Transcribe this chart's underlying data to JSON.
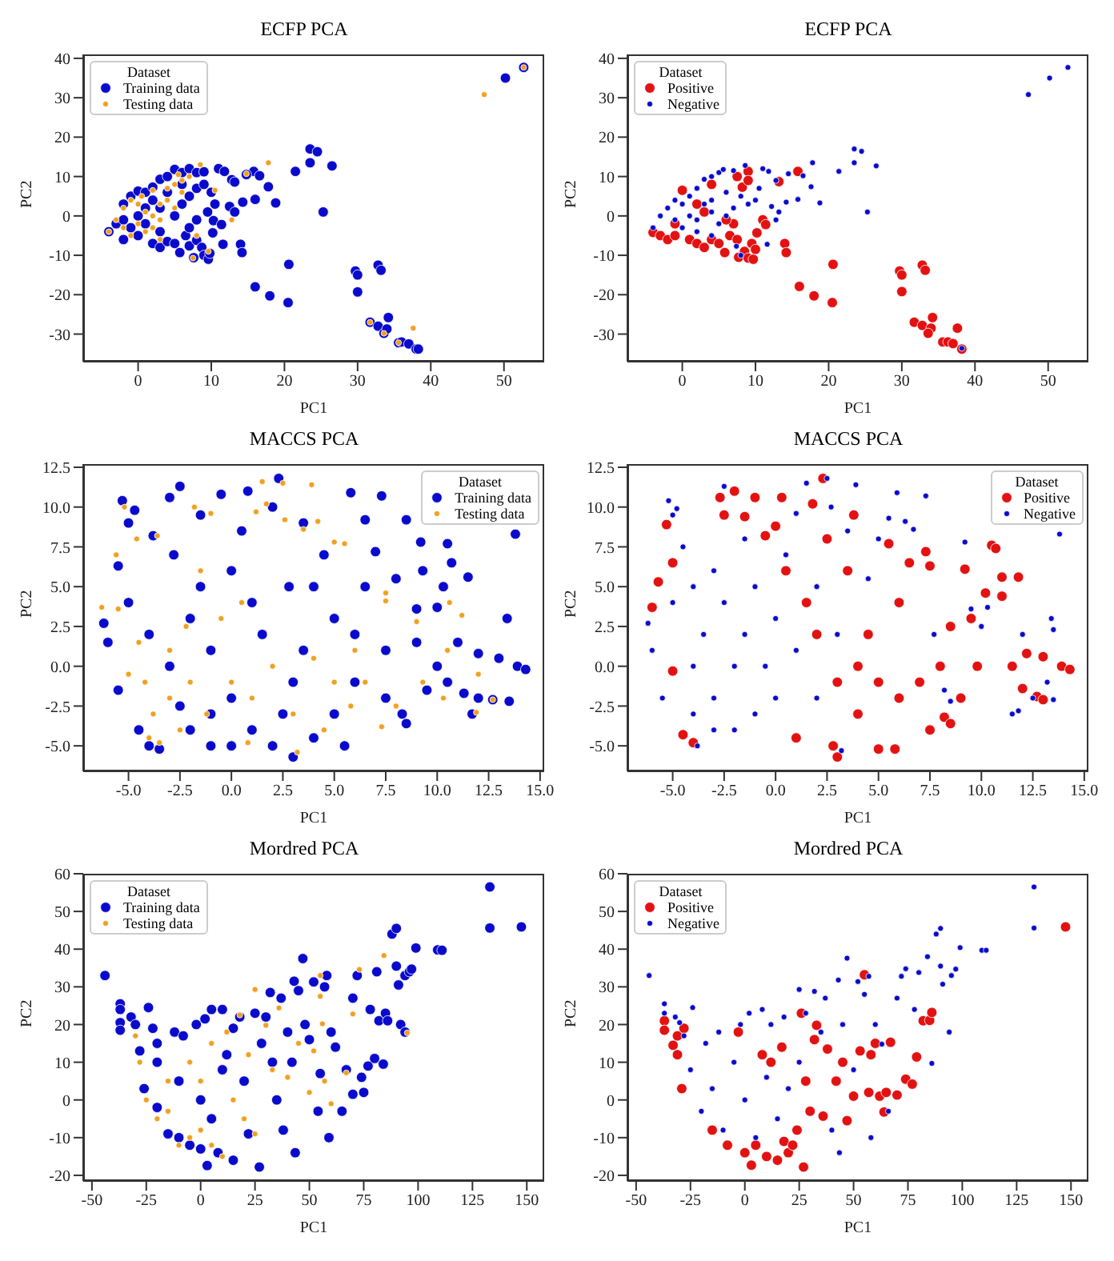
{
  "chart_data": [
    {
      "type": "scatter",
      "title": "ECFP PCA",
      "xlabel": "PC1",
      "ylabel": "PC2",
      "legend_title": "Dataset",
      "legend": "top left",
      "marker": "circle",
      "xlim": [
        -7.5,
        55.5
      ],
      "ylim": [
        -37,
        41
      ],
      "xticks": [
        0,
        10,
        20,
        30,
        40,
        50
      ],
      "yticks": [
        -30,
        -20,
        -10,
        0,
        10,
        20,
        30,
        40
      ],
      "series": [
        {
          "name": "Training data",
          "color": "#0a0acd",
          "x": [
            -4,
            -3,
            -2,
            -1,
            0,
            1,
            2,
            3,
            4,
            5,
            6,
            7,
            8,
            9,
            -2,
            0,
            2,
            3,
            4,
            5,
            5.7,
            6.5,
            7,
            8,
            8.7,
            9,
            9.6,
            9.8,
            7.6,
            6,
            7,
            8,
            9,
            10,
            10.5,
            9.5,
            8,
            7,
            5,
            3,
            1,
            -1,
            2,
            4,
            6,
            0,
            1,
            -2,
            3,
            10.3,
            23.5,
            24.5,
            26.5,
            21.5,
            23.5,
            25.3,
            18.8,
            17.8,
            16,
            14.3,
            15.8,
            16.6,
            14.8,
            11,
            11.8,
            12.8,
            13.2,
            12.5,
            13.2,
            11.4,
            11.6,
            14,
            14.2,
            10.2,
            20.6,
            16,
            18,
            20.5,
            29.7,
            30,
            30,
            32.8,
            33.2,
            34.2,
            31.7,
            32.8,
            33.6,
            34,
            35.6,
            36,
            37,
            38,
            38.3,
            50.2,
            52.7
          ],
          "values": [
            -4,
            -2,
            -6,
            5,
            6.3,
            6,
            7.3,
            9.3,
            10,
            11.8,
            11,
            12,
            11,
            11.2,
            3,
            -5,
            -7,
            -8,
            -6.5,
            -7,
            -9.3,
            -5,
            -7.6,
            -6.2,
            -8,
            -10,
            -11,
            -9.5,
            -10.6,
            3,
            5,
            7,
            8,
            6,
            3,
            1,
            -1,
            -3,
            0,
            2,
            -2,
            -3,
            4,
            6,
            8,
            0,
            2,
            -1,
            -4,
            -1.2,
            17,
            16.3,
            12.7,
            11.3,
            13.5,
            1,
            3.3,
            7.4,
            4.2,
            3.5,
            11.3,
            10.2,
            10.5,
            12,
            11.3,
            9.2,
            8.6,
            2.4,
            1,
            -2.2,
            -7.2,
            -7.2,
            -9.3,
            -4.3,
            -12.3,
            -18,
            -20.3,
            -22,
            -14,
            -15,
            -19.3,
            -12.5,
            -13.8,
            -25.8,
            -27,
            -28,
            -29.8,
            -28.7,
            -32.2,
            -32,
            -32.5,
            -33.8,
            -33.8,
            35,
            37.7
          ]
        },
        {
          "name": "Testing data",
          "color": "#f0a020",
          "x": [
            -4,
            -3,
            -2,
            -1,
            0,
            1,
            2,
            3,
            4,
            0,
            -1,
            1,
            2,
            3,
            5,
            5,
            6,
            7,
            5.5,
            4,
            6,
            8.5,
            17.8,
            14.8,
            10.5,
            12.8,
            7.5,
            9.6,
            8,
            31.7,
            33.6,
            35.6,
            37.6,
            47.3,
            52.7,
            3,
            -2,
            0.5,
            2
          ],
          "values": [
            -4,
            -1,
            2,
            4,
            3,
            1,
            0,
            3,
            4,
            -2,
            -5,
            -4,
            -3,
            -1,
            2,
            8,
            9,
            10,
            10.5,
            7,
            6,
            13,
            13.5,
            10.7,
            6.5,
            -1,
            -10.7,
            -9,
            -5,
            -27,
            -29.8,
            -32.2,
            -28.5,
            30.8,
            37.7,
            -6,
            -3,
            5,
            6.5
          ]
        }
      ]
    },
    {
      "type": "scatter",
      "title": "ECFP PCA",
      "xlabel": "PC1",
      "ylabel": "PC2",
      "legend_title": "Dataset",
      "legend": "top left",
      "marker": "circle",
      "xlim": [
        -7.5,
        55.5
      ],
      "ylim": [
        -37,
        41
      ],
      "xticks": [
        0,
        10,
        20,
        30,
        40,
        50
      ],
      "yticks": [
        -30,
        -20,
        -10,
        0,
        10,
        20,
        30,
        40
      ],
      "series": [
        {
          "name": "Positive",
          "color": "#e31212",
          "x": [
            -4,
            -3,
            -2,
            -1,
            0,
            1,
            2,
            3,
            4,
            5,
            5.8,
            6.5,
            7,
            7.5,
            7.7,
            8.5,
            9,
            9.5,
            9.7,
            10,
            10.2,
            11,
            11.4,
            14,
            14.2,
            9,
            8.2,
            7.5,
            9,
            4,
            13.2,
            15.8,
            20.6,
            16,
            18,
            20.5,
            29.7,
            30,
            30,
            32.8,
            33.2,
            34.2,
            31.7,
            32.8,
            34,
            33.6,
            37.6,
            35.6,
            36.3,
            37,
            38.2,
            6,
            2,
            -1,
            3
          ],
          "values": [
            -4.2,
            -5,
            -6,
            -5,
            6.5,
            -6,
            -7,
            -8,
            -6,
            -7,
            -9.3,
            -5,
            -2,
            -6,
            -10.5,
            -9,
            -10.7,
            -7,
            -11,
            -8.5,
            -4.3,
            -1,
            -2.2,
            -7,
            -9.3,
            11.3,
            7.3,
            10,
            9,
            8,
            8.7,
            11.3,
            -12.3,
            -17.9,
            -20.3,
            -22,
            -14,
            -15,
            -19.2,
            -12.5,
            -13.8,
            -25.8,
            -27,
            -27.8,
            -28.5,
            -29.8,
            -28.5,
            -32,
            -32,
            -32.4,
            -33.8,
            -1,
            3,
            -2,
            1
          ]
        },
        {
          "name": "Negative",
          "color": "#0a0acd",
          "x": [
            -4,
            -3,
            -2,
            -1,
            0,
            1,
            2,
            3,
            4,
            5,
            5.6,
            7,
            8.6,
            11,
            11.8,
            12.8,
            14.5,
            16.5,
            17.8,
            17.6,
            15.8,
            14.2,
            18.8,
            21.4,
            23.5,
            24.5,
            23.5,
            26.5,
            25.3,
            12.2,
            13.2,
            12.8,
            11.6,
            10.5,
            10,
            9,
            8,
            7,
            6,
            5,
            4,
            3,
            2,
            1,
            0,
            -1,
            2,
            4,
            7.4,
            8,
            38.2,
            47.3,
            50.2,
            52.7,
            6,
            4
          ],
          "values": [
            -3,
            0,
            2,
            4,
            3,
            5,
            7,
            9.3,
            10,
            11,
            11.8,
            11.5,
            12.8,
            12,
            11.3,
            9,
            10.7,
            10.2,
            13.5,
            7.4,
            4.2,
            3.5,
            3.3,
            11.3,
            17,
            16.4,
            13.5,
            12.7,
            1,
            2.4,
            1,
            -1,
            -7.2,
            7,
            4,
            3,
            5,
            2,
            0,
            -2,
            1,
            3,
            -1,
            0,
            -3,
            -1,
            -4,
            -5,
            -7.7,
            -10,
            -33.6,
            30.8,
            35,
            37.7,
            6,
            4
          ]
        }
      ]
    },
    {
      "type": "scatter",
      "title": "MACCS PCA",
      "xlabel": "PC1",
      "ylabel": "PC2",
      "legend_title": "Dataset",
      "legend": "top right",
      "marker": "circle",
      "xlim": [
        -7.2,
        15.2
      ],
      "ylim": [
        -6.6,
        12.7
      ],
      "xticks": [
        {
          "value": -5,
          "label": "-5.0"
        },
        {
          "value": -2.5,
          "label": "-2.5"
        },
        {
          "value": 0,
          "label": "0.0"
        },
        {
          "value": 2.5,
          "label": "2.5"
        },
        {
          "value": 5,
          "label": "5.0"
        },
        {
          "value": 7.5,
          "label": "7.5"
        },
        {
          "value": 10,
          "label": "10.0"
        },
        {
          "value": 12.5,
          "label": "12.5"
        },
        {
          "value": 15,
          "label": "15.0"
        }
      ],
      "yticks": [
        {
          "value": -5,
          "label": "-5.0"
        },
        {
          "value": -2.5,
          "label": "-2.5"
        },
        {
          "value": 0,
          "label": "0.0"
        },
        {
          "value": 2.5,
          "label": "2.5"
        },
        {
          "value": 5,
          "label": "5.0"
        },
        {
          "value": 7.5,
          "label": "7.5"
        },
        {
          "value": 10,
          "label": "10.0"
        },
        {
          "value": 12.5,
          "label": "12.5"
        }
      ],
      "series": [
        {
          "name": "Training data",
          "color": "#0a0acd",
          "x": [
            -6.2,
            -6,
            -5.5,
            -5.3,
            -5,
            -4.7,
            -5.5,
            -5,
            -4.5,
            -4,
            -3.8,
            -3.5,
            -3,
            -2.5,
            -2.8,
            -2,
            -2,
            -1.5,
            -1.5,
            -1,
            -1,
            -0.5,
            0,
            0,
            0.5,
            0.8,
            1,
            1.5,
            2,
            2.3,
            2.5,
            2.8,
            3,
            3.5,
            3.5,
            4,
            4.5,
            5,
            5,
            5.5,
            5.8,
            6,
            6,
            6.5,
            6.5,
            7,
            7.3,
            7.5,
            7.5,
            8,
            8.3,
            8.5,
            8.5,
            9,
            9,
            9.2,
            9.3,
            9.5,
            10,
            10,
            10.3,
            10.5,
            10.7,
            10.5,
            11,
            11.3,
            11.5,
            11.7,
            12,
            12,
            12.7,
            13,
            13.4,
            13.5,
            13.8,
            13.9,
            14.3,
            -3,
            -4,
            -1,
            1,
            3,
            4,
            0,
            2,
            -2.5
          ],
          "values": [
            2.7,
            1.5,
            -1.5,
            10.4,
            9,
            9.8,
            6.3,
            4,
            -4,
            -5,
            8.2,
            -5.2,
            10.6,
            11.3,
            7,
            -4,
            3,
            5,
            9.5,
            -5,
            1,
            10.8,
            6,
            -2,
            8.5,
            11,
            -4,
            2,
            10,
            11.8,
            -3,
            5,
            -5.7,
            9,
            1,
            -4.5,
            7,
            -3,
            3,
            -5,
            10.9,
            2,
            -1,
            5,
            9.2,
            7.2,
            10.7,
            -2,
            1,
            5.5,
            -3,
            9.2,
            -3.6,
            1.5,
            3.6,
            7.8,
            6,
            -1.5,
            0,
            3.7,
            5,
            7.7,
            6.5,
            -1,
            1.5,
            -1.7,
            5.6,
            -3,
            -2,
            0.8,
            -2.1,
            0.5,
            3,
            -2.2,
            8.3,
            0,
            -0.2,
            0,
            2,
            -3,
            4,
            -1,
            5,
            -5,
            -5,
            -2.5
          ]
        },
        {
          "name": "Testing data",
          "color": "#f0a020",
          "x": [
            -6.3,
            -5.5,
            -5.6,
            -5.2,
            -4.6,
            -4.2,
            -4,
            -3.8,
            -3.5,
            -3.6,
            -3,
            -3,
            -2.5,
            -2.2,
            -2,
            -1.8,
            -1.5,
            -1.2,
            -1,
            -0.5,
            0,
            0.5,
            0.8,
            1,
            1.2,
            1.5,
            1.7,
            2,
            2.5,
            2.6,
            3,
            3.2,
            3.5,
            3.9,
            4,
            4.2,
            4.5,
            5,
            5,
            5.5,
            5.8,
            6,
            6.5,
            7.5,
            7.5,
            7.3,
            8,
            9,
            9.3,
            10.5,
            10.6,
            11.2,
            12,
            12.7,
            11.9,
            10.3,
            -5,
            -4.5
          ],
          "values": [
            3.7,
            3.6,
            7,
            10,
            8,
            -1,
            -4.5,
            -3,
            -4.8,
            8.2,
            1,
            -2,
            -4,
            2.5,
            -1,
            10,
            6,
            -3,
            9.6,
            3,
            -1,
            4,
            -4.8,
            -2,
            9.7,
            11.6,
            10.2,
            0,
            11.5,
            9.2,
            -3,
            -5.4,
            8.6,
            11.4,
            0.5,
            9.1,
            -4,
            7.8,
            -1,
            7.7,
            -2.5,
            1,
            -1,
            4.6,
            4.1,
            -3.8,
            -2.5,
            2.8,
            -1,
            1,
            4,
            3.2,
            -0.5,
            -2.1,
            -2.9,
            -2,
            -0.5,
            1.5
          ]
        }
      ]
    },
    {
      "type": "scatter",
      "title": "MACCS PCA",
      "xlabel": "PC1",
      "ylabel": "PC2",
      "legend_title": "Dataset",
      "legend": "top right",
      "marker": "circle",
      "xlim": [
        -7.2,
        15.2
      ],
      "ylim": [
        -6.6,
        12.7
      ],
      "xticks": [
        {
          "value": -5,
          "label": "-5.0"
        },
        {
          "value": -2.5,
          "label": "-2.5"
        },
        {
          "value": 0,
          "label": "0.0"
        },
        {
          "value": 2.5,
          "label": "2.5"
        },
        {
          "value": 5,
          "label": "5.0"
        },
        {
          "value": 7.5,
          "label": "7.5"
        },
        {
          "value": 10,
          "label": "10.0"
        },
        {
          "value": 12.5,
          "label": "12.5"
        },
        {
          "value": 15,
          "label": "15.0"
        }
      ],
      "yticks": [
        {
          "value": -5,
          "label": "-5.0"
        },
        {
          "value": -2.5,
          "label": "-2.5"
        },
        {
          "value": 0,
          "label": "0.0"
        },
        {
          "value": 2.5,
          "label": "2.5"
        },
        {
          "value": 5,
          "label": "5.0"
        },
        {
          "value": 7.5,
          "label": "7.5"
        },
        {
          "value": 10,
          "label": "10.0"
        },
        {
          "value": 12.5,
          "label": "12.5"
        }
      ],
      "series": [
        {
          "name": "Positive",
          "color": "#e31212",
          "x": [
            -6,
            -5.7,
            -5.3,
            -5,
            -5,
            -4.5,
            -4,
            -2.7,
            -2.5,
            -2,
            -1.5,
            -1,
            -0.5,
            0,
            0.3,
            0.5,
            1,
            1.5,
            1.8,
            2.3,
            2.5,
            2.8,
            3,
            3.5,
            3.8,
            4,
            4.5,
            5,
            5.5,
            5.8,
            6,
            6.5,
            7,
            7.3,
            7.5,
            7.5,
            8,
            8.2,
            8.5,
            8.5,
            9,
            9.2,
            9.5,
            9.8,
            10.2,
            10.5,
            10.7,
            11,
            11,
            11.8,
            11.5,
            12,
            12.2,
            12.7,
            13,
            13,
            13.9,
            14.3,
            6,
            4,
            2,
            5,
            3
          ],
          "values": [
            3.7,
            5.3,
            8.9,
            6.5,
            -0.3,
            -4.3,
            -4.8,
            10.6,
            9.5,
            11,
            9.4,
            10.6,
            8.2,
            8.8,
            10.6,
            6,
            -4.5,
            4,
            10.2,
            11.8,
            8,
            -5,
            -5.7,
            6,
            9.5,
            -3,
            2,
            -5.2,
            7.7,
            -5.2,
            4,
            6.5,
            -1,
            7.2,
            -4,
            6.3,
            0,
            -3.2,
            -3.6,
            2.5,
            -2,
            6.1,
            3,
            0,
            4.6,
            7.6,
            7.4,
            4.4,
            5.6,
            5.6,
            0,
            -1.4,
            0.8,
            -1.9,
            -2.1,
            0.6,
            0,
            -0.2,
            -2,
            0,
            2,
            -1,
            -1
          ]
        },
        {
          "name": "Negative",
          "color": "#0a0acd",
          "x": [
            -6.2,
            -6,
            -5.5,
            -5.2,
            -5,
            -4.8,
            -5,
            -4.5,
            -4,
            -4,
            -3.8,
            -3.5,
            -3,
            -3,
            -2.5,
            -2.5,
            -2,
            -2,
            -1.5,
            -1.5,
            -1,
            -1,
            -0.5,
            0,
            0,
            0.5,
            1,
            1,
            1.5,
            2,
            2,
            2.5,
            2.7,
            3,
            3.2,
            3.5,
            3.9,
            4.5,
            5,
            5.5,
            5.9,
            6.3,
            6.7,
            7.3,
            7.7,
            8.2,
            8.5,
            9.2,
            9.5,
            10,
            10.3,
            11.5,
            11.8,
            12,
            12.5,
            13.4,
            13.5,
            13.5,
            13.2,
            13.8,
            -4,
            -3
          ],
          "values": [
            2.7,
            1,
            -2,
            10.4,
            9.5,
            9.9,
            4,
            7.5,
            0,
            -3,
            -5,
            2,
            6,
            -2,
            11.3,
            4,
            0,
            -4,
            8,
            2,
            -3,
            5,
            0,
            3,
            -2,
            7,
            1,
            9.6,
            11.5,
            -2,
            5,
            11.8,
            10,
            2,
            -5.3,
            8.5,
            11.4,
            5.5,
            8,
            9.3,
            10.9,
            9.1,
            8.6,
            10.7,
            2,
            -1.5,
            -2.2,
            7.8,
            3.6,
            2.5,
            3.7,
            -3,
            -2.8,
            2,
            -2,
            3,
            2.3,
            -2.1,
            -1,
            8.3,
            5,
            -4
          ]
        }
      ]
    },
    {
      "type": "scatter",
      "title": "Mordred PCA",
      "xlabel": "PC1",
      "ylabel": "PC2",
      "legend_title": "Dataset",
      "legend": "top left",
      "marker": "circle",
      "xlim": [
        -54,
        158
      ],
      "ylim": [
        -21.5,
        60
      ],
      "xticks": [
        -50,
        -25,
        0,
        25,
        50,
        75,
        100,
        125,
        150
      ],
      "yticks": [
        -20,
        -10,
        0,
        10,
        20,
        30,
        40,
        50,
        60
      ],
      "series": [
        {
          "name": "Training data",
          "color": "#0a0acd",
          "x": [
            -44,
            -37,
            -37,
            -37,
            -37,
            -32,
            -30,
            -28,
            -26,
            -24,
            -22,
            -20,
            -20,
            -15,
            -12,
            -10,
            -8,
            -5,
            -2,
            0,
            2,
            3,
            5,
            8,
            10,
            12,
            15,
            15,
            18,
            20,
            22,
            25,
            27,
            28,
            30,
            32,
            33,
            35,
            37,
            38,
            40,
            42,
            43,
            43.5,
            45,
            47,
            48,
            50,
            52,
            54,
            55,
            57,
            58,
            59,
            60,
            62,
            65,
            67,
            70,
            70,
            72,
            74,
            75,
            77,
            78,
            80,
            81,
            82,
            84,
            85,
            86,
            88,
            90,
            90,
            91,
            92,
            94,
            94,
            96,
            97,
            99,
            109,
            111,
            133,
            133,
            147.5,
            -10,
            0,
            10,
            -20,
            5
          ],
          "values": [
            33,
            25.5,
            24,
            20.5,
            18.5,
            22,
            20,
            13,
            3,
            24.5,
            19,
            15,
            -2,
            -9,
            18,
            -10,
            17,
            -12,
            20,
            -13,
            21.5,
            -17.4,
            24,
            -14,
            24,
            12,
            -16,
            19,
            22,
            5,
            -9,
            23,
            -17.8,
            15,
            22,
            28.5,
            10,
            0,
            27,
            -8,
            18,
            10,
            31.5,
            -14,
            29,
            37.5,
            20,
            16,
            31.3,
            -3,
            7,
            30,
            33,
            -10,
            18,
            14,
            -3,
            8,
            27,
            1.5,
            33,
            6,
            2,
            9,
            24,
            11,
            34,
            21,
            9.5,
            23,
            21,
            44,
            45.5,
            35.5,
            30.5,
            20,
            18,
            33,
            34,
            34.7,
            40.3,
            39.8,
            39.7,
            56.5,
            45.6,
            45.9,
            5,
            0,
            8,
            10,
            -5
          ]
        },
        {
          "name": "Testing data",
          "color": "#f0a020",
          "x": [
            -30,
            -28,
            -25,
            -20,
            -15,
            -10,
            -5,
            0,
            5,
            10,
            12,
            15,
            18,
            20,
            22,
            25,
            25,
            30,
            33,
            36,
            40,
            45,
            50,
            52,
            55,
            55,
            56,
            57,
            60,
            67,
            70,
            73,
            84.3,
            95,
            -15,
            -5,
            5,
            0
          ],
          "values": [
            17,
            10,
            0,
            -5,
            5,
            -12,
            10,
            -8,
            15,
            -15,
            18,
            0,
            22.5,
            -5,
            12,
            29.3,
            -9,
            19.8,
            8,
            24.4,
            6,
            15,
            2,
            13,
            33,
            27.5,
            20.2,
            5,
            -1,
            7.2,
            22.8,
            34.6,
            38.3,
            17.8,
            -3,
            -10,
            -12,
            5
          ]
        }
      ]
    },
    {
      "type": "scatter",
      "title": "Mordred PCA",
      "xlabel": "PC1",
      "ylabel": "PC2",
      "legend_title": "Dataset",
      "legend": "top left",
      "marker": "circle",
      "xlim": [
        -54,
        158
      ],
      "ylim": [
        -21.5,
        60
      ],
      "xticks": [
        -50,
        -25,
        0,
        25,
        50,
        75,
        100,
        125,
        150
      ],
      "yticks": [
        -20,
        -10,
        0,
        10,
        20,
        30,
        40,
        50,
        60
      ],
      "series": [
        {
          "name": "Positive",
          "color": "#e31212",
          "x": [
            -37,
            -37,
            -33,
            -31,
            -31,
            -29,
            -28,
            -15,
            -8,
            -3,
            0,
            3,
            5,
            8,
            10,
            12,
            15,
            17,
            18,
            20,
            22,
            24,
            26,
            27,
            28,
            30,
            32,
            33,
            36,
            38,
            42,
            45,
            47,
            50,
            53,
            55,
            57,
            58,
            60,
            62,
            64,
            65,
            67,
            70,
            74,
            77,
            79,
            82,
            85,
            86,
            147.5
          ],
          "values": [
            21,
            18.5,
            14.5,
            17,
            12,
            3,
            19,
            -8,
            -12,
            18,
            -14,
            -17.3,
            -12,
            12,
            -15,
            10,
            -16,
            14,
            -11,
            -14,
            -12,
            -8,
            23,
            -17.8,
            5,
            -3,
            16,
            19.8,
            -4.3,
            13.5,
            5,
            10,
            -5.5,
            1,
            13,
            33.2,
            2,
            12,
            15,
            1,
            -3.2,
            2,
            15.3,
            1.3,
            5.5,
            4.2,
            11.4,
            21,
            21.1,
            23.2,
            45.9
          ]
        },
        {
          "name": "Negative",
          "color": "#0a0acd",
          "x": [
            -44,
            -37,
            -37,
            -32,
            -30,
            -28,
            -25,
            -24,
            -20,
            -18,
            -15,
            -12,
            -10,
            -5,
            -2,
            0,
            2,
            5,
            8,
            10,
            12,
            15,
            18,
            20,
            25,
            25,
            28,
            32,
            35,
            37,
            40,
            43,
            43.5,
            45,
            47,
            50,
            52,
            55,
            57,
            58,
            60,
            63,
            66,
            70,
            72,
            74,
            78,
            80,
            84,
            86,
            88,
            90,
            90,
            91,
            94,
            95,
            97,
            99,
            109,
            111,
            133,
            133
          ],
          "values": [
            33,
            25.5,
            23,
            22,
            20.5,
            17,
            8,
            24.5,
            -3,
            15,
            3,
            18,
            -8,
            10,
            20,
            0,
            23,
            -10,
            24,
            6,
            20,
            -5,
            22,
            3,
            29.3,
            10,
            23,
            28.8,
            18,
            27,
            -8,
            31.8,
            -14,
            20,
            37.6,
            8,
            31.4,
            28,
            32.8,
            -10,
            20,
            14.8,
            -3,
            27,
            32.8,
            34.8,
            24,
            33.8,
            38,
            9.7,
            44,
            45.5,
            35.5,
            30.7,
            18,
            33,
            34.7,
            40.4,
            39.7,
            39.7,
            56.5,
            45.6
          ]
        }
      ]
    }
  ]
}
